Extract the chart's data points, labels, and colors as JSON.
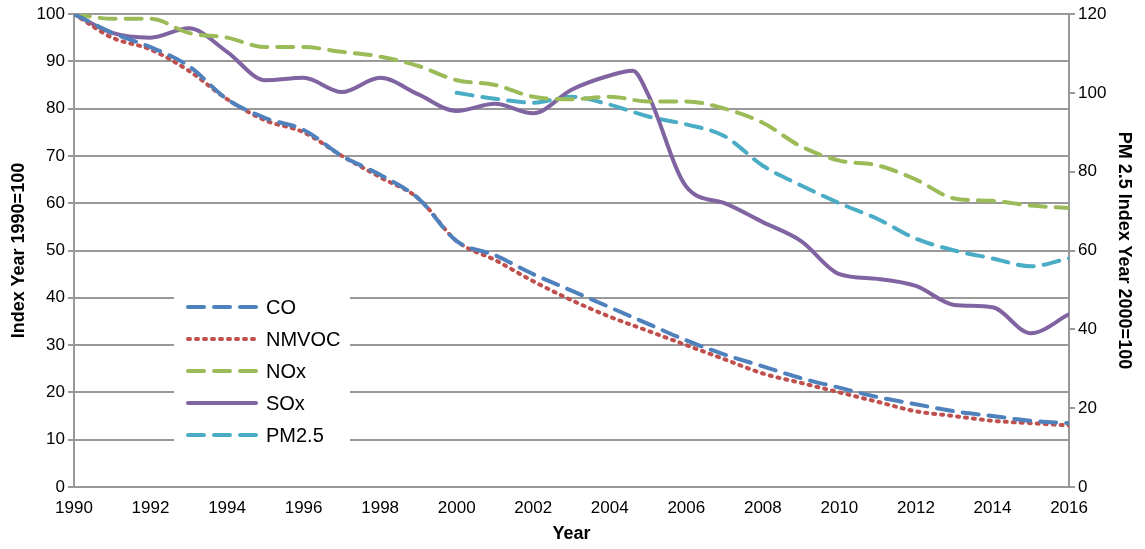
{
  "chart_data": {
    "type": "line",
    "xlabel": "Year",
    "ylabel": "Index Year 1990=100",
    "y2label": "PM 2.5 Index Year 2000=100",
    "x": [
      1990,
      1991,
      1992,
      1993,
      1994,
      1995,
      1996,
      1997,
      1998,
      1999,
      2000,
      2001,
      2002,
      2003,
      2004,
      2005,
      2006,
      2007,
      2008,
      2009,
      2010,
      2011,
      2012,
      2013,
      2014,
      2015,
      2016
    ],
    "series": [
      {
        "name": "CO",
        "color": "#4f81bd",
        "line_style": "dashed",
        "values": [
          100,
          96,
          93,
          89,
          82,
          78,
          75.5,
          70,
          66,
          61,
          52,
          49,
          45,
          41.5,
          38,
          34.5,
          31,
          28,
          25.5,
          23,
          21,
          19,
          17.5,
          16,
          15,
          14,
          13.5
        ]
      },
      {
        "name": "NMVOC",
        "color": "#c0504d",
        "line_style": "dotted",
        "values": [
          100,
          95,
          92.5,
          88,
          82,
          77.5,
          75,
          70,
          65.5,
          61,
          52,
          48,
          43.5,
          39.5,
          36,
          33,
          30,
          27,
          24,
          22,
          20,
          18,
          16,
          15,
          14,
          13.5,
          13
        ]
      },
      {
        "name": "NOx",
        "color": "#9bbb59",
        "line_style": "dashed",
        "values": [
          100,
          99,
          99,
          96,
          95,
          93,
          93,
          92,
          91,
          89,
          86,
          85,
          82.5,
          82,
          82.5,
          81.5,
          81.5,
          80,
          77,
          72,
          69,
          68,
          65,
          61,
          60.5,
          59.5,
          59
        ]
      },
      {
        "name": "SOx",
        "color": "#8064a2",
        "line_style": "solid",
        "x": [
          1990,
          1991,
          1992,
          1993,
          1994,
          1995,
          1996,
          1997,
          1998,
          1999,
          2000,
          2001,
          2002,
          2003,
          2004,
          2004.6,
          2005,
          2006,
          2007,
          2008,
          2009,
          2010,
          2011,
          2012,
          2013,
          2014,
          2015,
          2016
        ],
        "values": [
          100,
          96,
          95,
          97,
          92,
          86,
          86.5,
          83.5,
          86.5,
          83,
          79.5,
          81,
          79,
          84,
          87,
          88,
          83,
          63.5,
          60,
          56,
          52,
          45,
          44,
          42.5,
          38.5,
          38,
          32.5,
          36.5
        ]
      },
      {
        "name": "PM2.5",
        "color": "#4bacc6",
        "line_style": "dashed",
        "axis": "y2",
        "x": [
          2000,
          2001,
          2002,
          2003,
          2004,
          2005,
          2006,
          2007,
          2008,
          2009,
          2010,
          2011,
          2012,
          2013,
          2014,
          2015,
          2016
        ],
        "values": [
          100,
          98.5,
          97.5,
          99,
          97,
          94,
          92,
          89,
          81.5,
          76.5,
          72,
          68,
          63,
          60,
          58,
          56,
          58
        ]
      }
    ],
    "xlim": [
      1990,
      2016
    ],
    "xticks": [
      1990,
      1992,
      1994,
      1996,
      1998,
      2000,
      2002,
      2004,
      2006,
      2008,
      2010,
      2012,
      2014,
      2016
    ],
    "ylim": [
      0,
      100
    ],
    "yticks": [
      0,
      10,
      20,
      30,
      40,
      50,
      60,
      70,
      80,
      90,
      100
    ],
    "y2lim": [
      0,
      120
    ],
    "y2ticks": [
      0,
      20,
      40,
      60,
      80,
      100,
      120
    ],
    "grid": "y",
    "legend": "bottom left",
    "marker": "none"
  }
}
